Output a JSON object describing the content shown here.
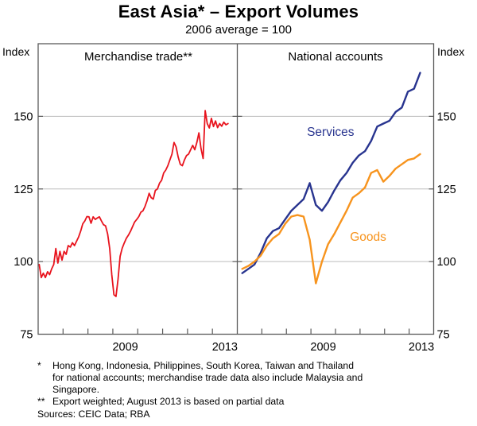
{
  "title": "East Asia* – Export Volumes",
  "subtitle": "2006 average = 100",
  "chart_data": {
    "type": "line",
    "index_label": "Index",
    "ylim": [
      75,
      175
    ],
    "yticks": [
      75,
      100,
      125,
      150
    ],
    "x_range_years": [
      2006,
      2014
    ],
    "grid": "horizontal",
    "colors": {
      "merchandise": "#e8131d",
      "services": "#28348f",
      "goods": "#f7941e",
      "grid_line": "#bcbcbc",
      "frame": "#5a5a5a",
      "text": "#000000"
    },
    "panels": [
      {
        "label": "Merchandise trade**",
        "xtick_years": [
          2007,
          2008,
          2009,
          2010,
          2011,
          2012,
          2013
        ],
        "xtick_labels": [
          {
            "text": "2009",
            "t": 2009.5
          },
          {
            "text": "2013",
            "t": 2013.5
          }
        ],
        "series": [
          {
            "name": "Merchandise trade",
            "color_key": "merchandise",
            "freq": "monthly",
            "x_start": 2006.042,
            "x_step": 0.083333,
            "stroke_width": 1.8,
            "values": [
              99,
              94.5,
              96,
              94.5,
              96.5,
              95.5,
              97.5,
              99,
              104.5,
              99.5,
              103.5,
              100.5,
              103.5,
              102.5,
              105.5,
              105,
              106.5,
              105.5,
              107,
              108.5,
              110.5,
              113,
              114,
              115.5,
              115.4,
              113.2,
              115.4,
              114.5,
              115,
              115.4,
              114,
              112.7,
              112.3,
              109.5,
              104.5,
              95.5,
              88.6,
              88,
              94,
              101.8,
              104.6,
              106.4,
              108,
              109.1,
              110.4,
              112,
              113.6,
              114.5,
              115.5,
              117,
              117.5,
              119,
              121,
              123.5,
              122,
              121.5,
              124.5,
              125,
              127,
              128,
              130.5,
              131.5,
              133,
              135,
              137,
              141,
              139.5,
              136,
              133.5,
              133,
              135,
              136.5,
              137,
              138.5,
              140,
              138.5,
              141,
              144.3,
              139,
              135.5,
              152,
              147.5,
              146,
              149.3,
              146.5,
              148.4,
              146.1,
              147.5,
              146.6,
              148,
              147.1,
              147.5
            ]
          }
        ]
      },
      {
        "label": "National accounts",
        "xtick_years": [
          2007,
          2008,
          2009,
          2010,
          2011,
          2012,
          2013
        ],
        "xtick_labels": [
          {
            "text": "2009",
            "t": 2009.5
          },
          {
            "text": "2013",
            "t": 2013.5
          }
        ],
        "series": [
          {
            "name": "Services",
            "color_key": "services",
            "freq": "quarterly",
            "x_start": 2006.2,
            "x_step": 0.25,
            "stroke_width": 2.4,
            "label_pos": {
              "t": 2009.8,
              "v": 143.3
            },
            "values": [
              96,
              97.5,
              99,
              103,
              108,
              110.5,
              111.5,
              114.5,
              117.5,
              119.5,
              121.5,
              127,
              119.5,
              117.5,
              120.5,
              124.5,
              128,
              130.5,
              134,
              136.5,
              138,
              141.5,
              146.5,
              147.5,
              148.5,
              151.5,
              153,
              158.5,
              159.5,
              165
            ]
          },
          {
            "name": "Goods",
            "color_key": "goods",
            "freq": "quarterly",
            "x_start": 2006.2,
            "x_step": 0.25,
            "stroke_width": 2.4,
            "label_pos": {
              "t": 2011.33,
              "v": 107.2
            },
            "values": [
              97.5,
              98.5,
              100,
              102,
              105.5,
              108,
              109.5,
              113,
              115.5,
              116,
              115.5,
              107.5,
              92.5,
              100,
              106,
              109.5,
              113.5,
              117.5,
              122,
              123.5,
              125.5,
              130.5,
              131.5,
              127.5,
              129.5,
              132,
              133.5,
              135,
              135.5,
              137
            ]
          }
        ]
      }
    ]
  },
  "footnotes": [
    {
      "marker": "*",
      "text": "Hong Kong, Indonesia, Philippines, South Korea, Taiwan and Thailand\nfor national accounts; merchandise trade data also include Malaysia and\nSingapore."
    },
    {
      "marker": "**",
      "text": "Export weighted; August 2013 is based on partial data"
    }
  ],
  "sources": "Sources: CEIC Data; RBA"
}
